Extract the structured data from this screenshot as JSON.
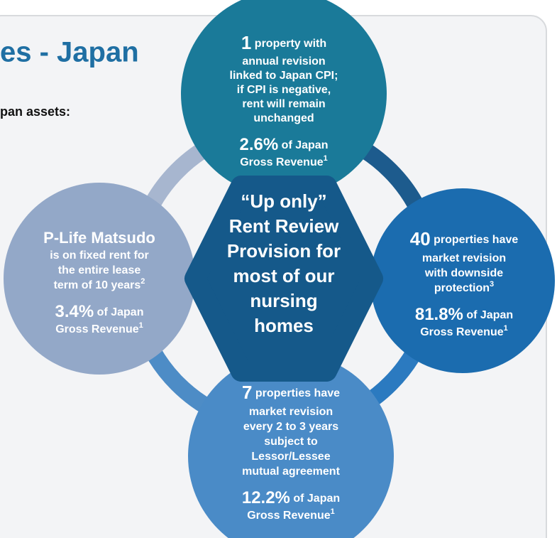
{
  "header": {
    "title": "es - Japan",
    "subtitle": "pan assets:"
  },
  "center": {
    "lines": [
      "“Up only”",
      "Rent Review",
      "Provision for",
      "most of our",
      "nursing",
      "homes"
    ]
  },
  "circles": [
    {
      "count": "1",
      "lines": [
        "property with",
        "annual revision",
        "linked to Japan CPI;",
        "if CPI is negative,",
        "rent will remain",
        "unchanged"
      ],
      "percent": "2.6%",
      "share": "of Japan",
      "revenue": "Gross Revenue",
      "note": "1"
    },
    {
      "count": "40",
      "lines": [
        "properties have",
        "market revision",
        "with downside",
        "protection"
      ],
      "line_note": "3",
      "percent": "81.8%",
      "share": "of Japan",
      "revenue": "Gross Revenue",
      "note": "1"
    },
    {
      "count": "7",
      "lines": [
        "properties have",
        "market revision",
        "every 2 to 3 years",
        "subject to",
        "Lessor/Lessee",
        "mutual agreement"
      ],
      "percent": "12.2%",
      "share": "of Japan",
      "revenue": "Gross Revenue",
      "note": "1"
    },
    {
      "name": "P-Life Matsudo",
      "lines": [
        "is on fixed rent for",
        "the entire lease",
        "term of 10 years"
      ],
      "line_note": "2",
      "percent": "3.4%",
      "share": "of Japan",
      "revenue": "Gross Revenue",
      "note": "1"
    }
  ]
}
